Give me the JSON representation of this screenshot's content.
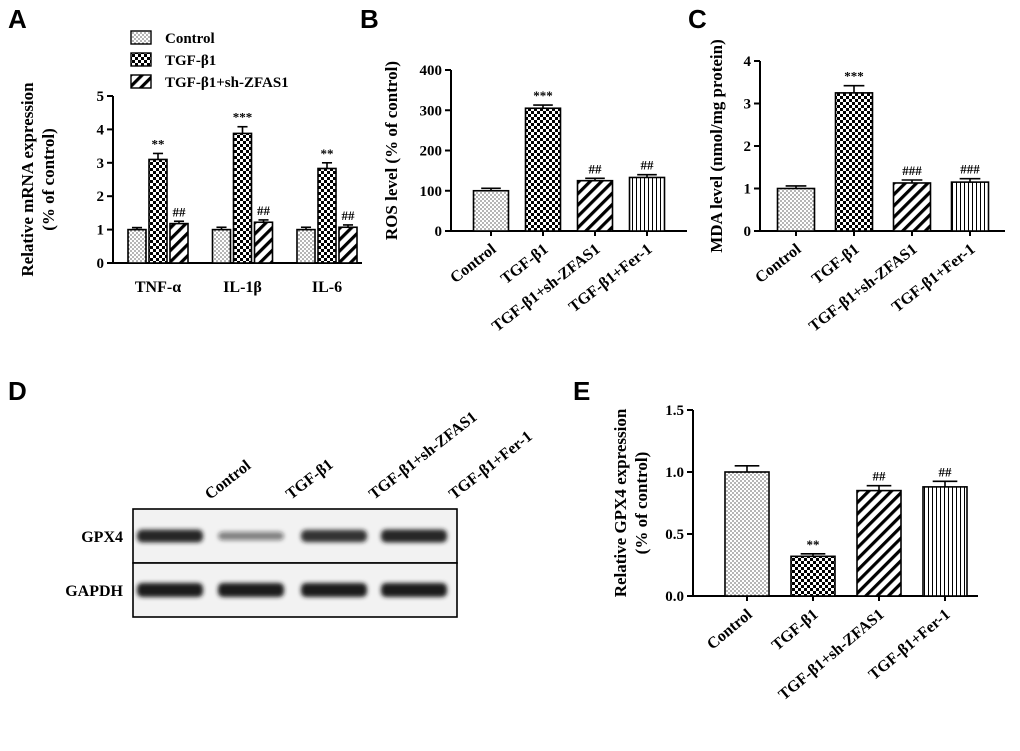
{
  "figure": {
    "panel_letters": [
      "A",
      "B",
      "C",
      "D",
      "E"
    ]
  },
  "colors": {
    "ink": "#000000",
    "background": "#ffffff",
    "band": "#1a1a1a"
  },
  "patterns": {
    "Control": "dots",
    "TGF-β1": "checker",
    "TGF-β1+sh-ZFAS1": "diagonal",
    "TGF-β1+Fer-1": "vertical"
  },
  "chart_data": [
    {
      "panel": "A",
      "type": "bar",
      "ylabel": "Relative mRNA expression (% of control)",
      "ylim": [
        0,
        5
      ],
      "yticks": [
        "0",
        "1",
        "2",
        "3",
        "4",
        "5"
      ],
      "categories": [
        "TNF-α",
        "IL-1β",
        "IL-6"
      ],
      "legend_placement": "top",
      "series": [
        {
          "name": "Control",
          "values": [
            1.0,
            1.0,
            1.0
          ],
          "errors": [
            0.06,
            0.07,
            0.07
          ],
          "annotations": [
            "",
            "",
            ""
          ]
        },
        {
          "name": "TGF-β1",
          "values": [
            3.1,
            3.88,
            2.83
          ],
          "errors": [
            0.18,
            0.2,
            0.17
          ],
          "annotations": [
            "**",
            "***",
            "**"
          ]
        },
        {
          "name": "TGF-β1+sh-ZFAS1",
          "values": [
            1.18,
            1.22,
            1.07
          ],
          "errors": [
            0.07,
            0.07,
            0.07
          ],
          "annotations": [
            "##",
            "##",
            "##"
          ]
        }
      ]
    },
    {
      "panel": "B",
      "type": "bar",
      "ylabel": "ROS level (% of control)",
      "ylim": [
        0,
        400
      ],
      "yticks": [
        "0",
        "100",
        "200",
        "300",
        "400"
      ],
      "categories": [
        "Control",
        "TGF-β1",
        "TGF-β1+sh-ZFAS1",
        "TGF-β1+Fer-1"
      ],
      "values": [
        100,
        305,
        125,
        133
      ],
      "errors": [
        6,
        8,
        6,
        7
      ],
      "annotations": [
        "",
        "***",
        "##",
        "##"
      ]
    },
    {
      "panel": "C",
      "type": "bar",
      "ylabel": "MDA level (nmol/mg protein)",
      "ylim": [
        0,
        4
      ],
      "yticks": [
        "0",
        "1",
        "2",
        "3",
        "4"
      ],
      "categories": [
        "Control",
        "TGF-β1",
        "TGF-β1+sh-ZFAS1",
        "TGF-β1+Fer-1"
      ],
      "values": [
        1.0,
        3.25,
        1.13,
        1.15
      ],
      "errors": [
        0.06,
        0.17,
        0.07,
        0.08
      ],
      "annotations": [
        "",
        "***",
        "###",
        "###"
      ]
    },
    {
      "panel": "E",
      "type": "bar",
      "ylabel": "Relative GPX4 expression (% of control)",
      "ylim": [
        0,
        1.5
      ],
      "yticks": [
        "0.0",
        "0.5",
        "1.0",
        "1.5"
      ],
      "categories": [
        "Control",
        "TGF-β1",
        "TGF-β1+sh-ZFAS1",
        "TGF-β1+Fer-1"
      ],
      "values": [
        1.0,
        0.32,
        0.85,
        0.88
      ],
      "errors": [
        0.05,
        0.02,
        0.04,
        0.045
      ],
      "annotations": [
        "",
        "**",
        "##",
        "##"
      ]
    }
  ],
  "blot": {
    "panel": "D",
    "lanes": [
      "Control",
      "TGF-β1",
      "TGF-β1+sh-ZFAS1",
      "TGF-β1+Fer-1"
    ],
    "rows": [
      {
        "label": "GPX4",
        "intensity": [
          0.85,
          0.32,
          0.78,
          0.88
        ]
      },
      {
        "label": "GAPDH",
        "intensity": [
          1.0,
          1.0,
          1.0,
          1.0
        ]
      }
    ]
  }
}
